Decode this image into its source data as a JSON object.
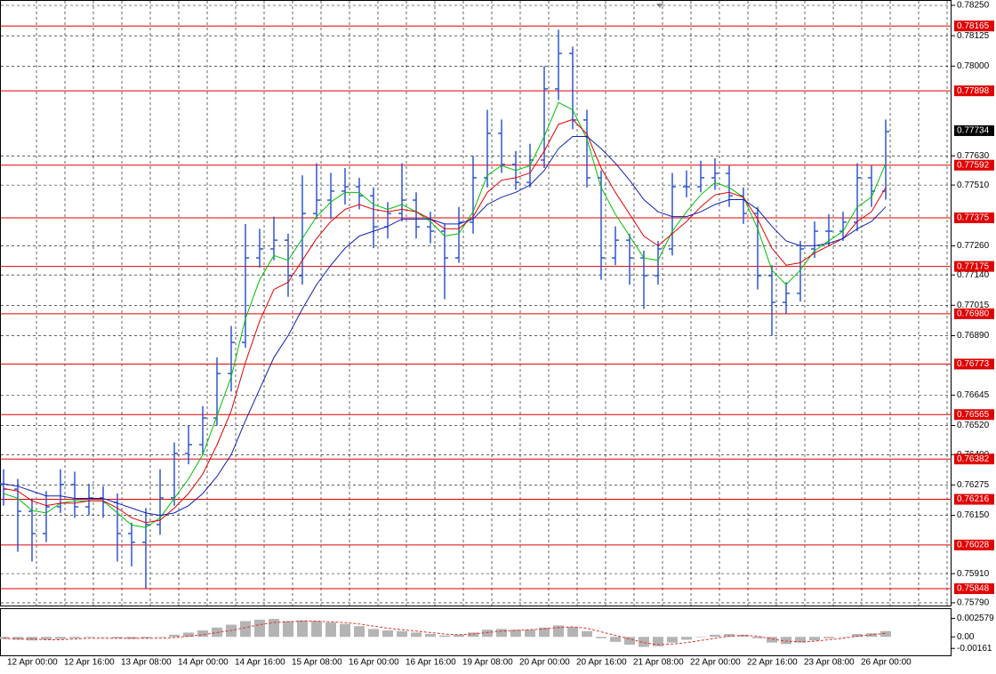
{
  "chart_data": {
    "type": "candlestick",
    "color": "#2f55d4",
    "grid": true,
    "ylim": [
      0.75775,
      0.78272
    ],
    "yticks": [
      {
        "value": 0.7825,
        "label": "0.78250"
      },
      0.78125,
      {
        "value": 0.78,
        "label": "0.78000"
      },
      {
        "value": 0.7763,
        "label": "0.77630"
      },
      {
        "value": 0.7751,
        "label": "0.77510"
      },
      {
        "value": 0.7726,
        "label": "0.77260"
      },
      {
        "value": 0.7714,
        "label": "0.77140"
      },
      0.77015,
      {
        "value": 0.7689,
        "label": "0.76890"
      },
      0.76645,
      {
        "value": 0.7652,
        "label": "0.76520"
      },
      {
        "value": 0.764,
        "label": "0.76400"
      },
      0.76275,
      {
        "value": 0.7615,
        "label": "0.76150"
      },
      {
        "value": 0.7591,
        "label": "0.75910"
      },
      {
        "value": 0.7579,
        "label": "0.75790"
      }
    ],
    "levels": {
      "color": "#e00000",
      "values": [
        0.78165,
        0.77898,
        0.77592,
        0.77375,
        0.77175,
        {
          "value": 0.7698,
          "label": "0.76980"
        },
        0.76773,
        0.76565,
        0.76382,
        0.76216,
        0.76028,
        0.75848
      ]
    },
    "current_price": 0.77734,
    "x_labels": [
      "12 Apr 00:00",
      "12 Apr 16:00",
      "13 Apr 08:00",
      "14 Apr 00:00",
      "14 Apr 16:00",
      "15 Apr 08:00",
      "16 Apr 00:00",
      "16 Apr 16:00",
      "19 Apr 08:00",
      "20 Apr 00:00",
      "20 Apr 16:00",
      "21 Apr 08:00",
      "22 Apr 00:00",
      "22 Apr 16:00",
      "23 Apr 08:00",
      "26 Apr 00:00"
    ],
    "ohlc": [
      [
        0.7628,
        0.7634,
        0.7619,
        0.76258
      ],
      [
        0.76258,
        0.763,
        0.76,
        0.76167
      ],
      [
        0.76167,
        0.7622,
        0.7596,
        0.76075
      ],
      [
        0.76075,
        0.7625,
        0.7604,
        0.76185
      ],
      [
        0.76185,
        0.7634,
        0.7616,
        0.76277
      ],
      [
        0.76277,
        0.7633,
        0.7614,
        0.76185
      ],
      [
        0.76185,
        0.7628,
        0.7615,
        0.76222
      ],
      [
        0.76222,
        0.7627,
        0.7614,
        0.76203
      ],
      [
        0.76203,
        0.7624,
        0.7596,
        0.76075
      ],
      [
        0.76075,
        0.7612,
        0.7594,
        0.76039
      ],
      [
        0.76039,
        0.7618,
        0.7585,
        0.76112
      ],
      [
        0.76112,
        0.7634,
        0.7607,
        0.76222
      ],
      [
        0.76222,
        0.7645,
        0.7619,
        0.76405
      ],
      [
        0.76405,
        0.7652,
        0.7636,
        0.76441
      ],
      [
        0.76441,
        0.766,
        0.764,
        0.76551
      ],
      [
        0.76551,
        0.768,
        0.7652,
        0.76734
      ],
      [
        0.76734,
        0.7693,
        0.7666,
        0.76862
      ],
      [
        0.76862,
        0.7735,
        0.7684,
        0.7721
      ],
      [
        0.7721,
        0.7733,
        0.7717,
        0.77247
      ],
      [
        0.77247,
        0.7738,
        0.772,
        0.77283
      ],
      [
        0.77283,
        0.7731,
        0.7705,
        0.77137
      ],
      [
        0.77137,
        0.7755,
        0.771,
        0.77393
      ],
      [
        0.77393,
        0.776,
        0.7737,
        0.77448
      ],
      [
        0.77448,
        0.7756,
        0.7737,
        0.77485
      ],
      [
        0.77485,
        0.7758,
        0.7743,
        0.77503
      ],
      [
        0.77503,
        0.7754,
        0.7741,
        0.77466
      ],
      [
        0.77466,
        0.775,
        0.7725,
        0.77338
      ],
      [
        0.77338,
        0.7744,
        0.7729,
        0.77393
      ],
      [
        0.77393,
        0.776,
        0.7736,
        0.77448
      ],
      [
        0.77448,
        0.7748,
        0.7729,
        0.77338
      ],
      [
        0.77338,
        0.774,
        0.7727,
        0.7732
      ],
      [
        0.7732,
        0.7735,
        0.7704,
        0.7721
      ],
      [
        0.7721,
        0.7742,
        0.7719,
        0.77357
      ],
      [
        0.77357,
        0.7763,
        0.7731,
        0.7754
      ],
      [
        0.7754,
        0.7782,
        0.775,
        0.77723
      ],
      [
        0.77723,
        0.7778,
        0.7756,
        0.77595
      ],
      [
        0.77595,
        0.7765,
        0.7749,
        0.77521
      ],
      [
        0.77521,
        0.7768,
        0.775,
        0.77613
      ],
      [
        0.77613,
        0.78,
        0.7758,
        0.77906
      ],
      [
        0.77906,
        0.7815,
        0.7786,
        0.78052
      ],
      [
        0.78052,
        0.7808,
        0.7774,
        0.77778
      ],
      [
        0.77778,
        0.7782,
        0.775,
        0.7754
      ],
      [
        0.7754,
        0.7757,
        0.7712,
        0.7721
      ],
      [
        0.7721,
        0.7734,
        0.7718,
        0.77283
      ],
      [
        0.77283,
        0.7731,
        0.771,
        0.7721
      ],
      [
        0.7721,
        0.7724,
        0.77,
        0.77137
      ],
      [
        0.77137,
        0.7728,
        0.771,
        0.77247
      ],
      [
        0.77247,
        0.7756,
        0.7722,
        0.77503
      ],
      [
        0.77503,
        0.7757,
        0.7746,
        0.77503
      ],
      [
        0.77503,
        0.7761,
        0.7748,
        0.7754
      ],
      [
        0.7754,
        0.7762,
        0.7749,
        0.77558
      ],
      [
        0.77558,
        0.7759,
        0.7742,
        0.77466
      ],
      [
        0.77466,
        0.775,
        0.7735,
        0.77393
      ],
      [
        0.77393,
        0.7742,
        0.7708,
        0.77137
      ],
      [
        0.77137,
        0.7718,
        0.7689,
        0.77027
      ],
      [
        0.77027,
        0.7711,
        0.7698,
        0.77064
      ],
      [
        0.77064,
        0.7728,
        0.7703,
        0.77247
      ],
      [
        0.77247,
        0.7736,
        0.7721,
        0.7732
      ],
      [
        0.7732,
        0.7739,
        0.7726,
        0.7732
      ],
      [
        0.7732,
        0.774,
        0.7728,
        0.77357
      ],
      [
        0.77357,
        0.776,
        0.7732,
        0.7754
      ],
      [
        0.7754,
        0.7759,
        0.7742,
        0.77485
      ],
      [
        0.77485,
        0.7778,
        0.7745,
        0.7773
      ]
    ],
    "moving_averages": [
      {
        "color": "#00c000",
        "values": [
          0.7624,
          0.7622,
          0.7617,
          0.7616,
          0.762,
          0.7621,
          0.7621,
          0.7621,
          0.7616,
          0.7611,
          0.761,
          0.7614,
          0.7622,
          0.763,
          0.764,
          0.7656,
          0.7672,
          0.7696,
          0.7712,
          0.7722,
          0.772,
          0.7729,
          0.7738,
          0.7744,
          0.7748,
          0.7748,
          0.7743,
          0.7741,
          0.7743,
          0.774,
          0.7736,
          0.773,
          0.7731,
          0.774,
          0.7755,
          0.7759,
          0.7757,
          0.7759,
          0.7771,
          0.7785,
          0.7782,
          0.777,
          0.775,
          0.7739,
          0.773,
          0.7721,
          0.772,
          0.7732,
          0.774,
          0.7747,
          0.7752,
          0.775,
          0.7746,
          0.7733,
          0.7716,
          0.771,
          0.7716,
          0.7724,
          0.7728,
          0.7732,
          0.7742,
          0.7746,
          0.776
        ]
      },
      {
        "color": "#e00000",
        "values": [
          0.7626,
          0.7625,
          0.7621,
          0.7619,
          0.762,
          0.762,
          0.7621,
          0.7621,
          0.7618,
          0.7614,
          0.7612,
          0.7613,
          0.7618,
          0.7624,
          0.7632,
          0.7644,
          0.7658,
          0.7678,
          0.7695,
          0.7708,
          0.7711,
          0.772,
          0.7729,
          0.7736,
          0.7741,
          0.7743,
          0.7741,
          0.774,
          0.7741,
          0.774,
          0.7737,
          0.7733,
          0.7733,
          0.7738,
          0.7748,
          0.7753,
          0.7754,
          0.7756,
          0.7765,
          0.7776,
          0.7778,
          0.7772,
          0.7758,
          0.7748,
          0.7739,
          0.773,
          0.7726,
          0.7731,
          0.7736,
          0.7742,
          0.7747,
          0.7748,
          0.7746,
          0.7737,
          0.7725,
          0.7718,
          0.7719,
          0.7723,
          0.7726,
          0.7729,
          0.7736,
          0.774,
          0.775
        ]
      },
      {
        "color": "#1020b0",
        "values": [
          0.7628,
          0.7627,
          0.7625,
          0.7623,
          0.7623,
          0.7622,
          0.7622,
          0.7622,
          0.762,
          0.7618,
          0.7616,
          0.7615,
          0.7616,
          0.7619,
          0.7624,
          0.7631,
          0.764,
          0.7654,
          0.7667,
          0.768,
          0.7689,
          0.77,
          0.771,
          0.7718,
          0.7725,
          0.773,
          0.7732,
          0.7734,
          0.7737,
          0.7737,
          0.7737,
          0.7735,
          0.7735,
          0.7737,
          0.7743,
          0.7746,
          0.7748,
          0.7751,
          0.7757,
          0.7766,
          0.7771,
          0.7771,
          0.7766,
          0.776,
          0.7753,
          0.7745,
          0.774,
          0.7738,
          0.7738,
          0.774,
          0.7743,
          0.7745,
          0.7745,
          0.7741,
          0.7734,
          0.7728,
          0.7726,
          0.7726,
          0.7727,
          0.7729,
          0.7733,
          0.7736,
          0.7742
        ]
      }
    ],
    "osc": {
      "ylim": [
        -0.0027,
        0.004
      ],
      "yticks": [
        0.002579,
        {
          "value": 0,
          "label": "0.00"
        },
        -0.00161
      ],
      "histogram": {
        "color": "#b4b4b4",
        "values": [
          -0.0003,
          -0.0004,
          -0.0005,
          -0.0004,
          -0.0003,
          -0.0002,
          -0.0001,
          0,
          -0.0002,
          -0.0003,
          -0.0002,
          0,
          0.0003,
          0.0006,
          0.0009,
          0.0013,
          0.0017,
          0.0022,
          0.0024,
          0.0025,
          0.0022,
          0.0023,
          0.0022,
          0.002,
          0.0018,
          0.0015,
          0.0011,
          0.0009,
          0.0008,
          0.0006,
          0.0004,
          0.0002,
          0.0003,
          0.0006,
          0.001,
          0.0011,
          0.001,
          0.001,
          0.0013,
          0.0016,
          0.0014,
          0.0008,
          -0.0002,
          -0.0007,
          -0.0011,
          -0.0014,
          -0.0013,
          -0.0008,
          -0.0004,
          0,
          0.0003,
          0.0004,
          0.0003,
          -0.0002,
          -0.0008,
          -0.001,
          -0.0008,
          -0.0005,
          -0.0002,
          0,
          0.0004,
          0.0005,
          0.0008
        ]
      },
      "signal": {
        "color": "#e03030",
        "values": [
          -0.0002,
          -0.0003,
          -0.0003,
          -0.0004,
          -0.0004,
          -0.0003,
          -0.0002,
          -0.0002,
          -0.0002,
          -0.0002,
          -0.0002,
          -0.0002,
          -0.0001,
          0.0001,
          0.0003,
          0.0006,
          0.0009,
          0.0013,
          0.0017,
          0.002,
          0.0021,
          0.0022,
          0.0022,
          0.0021,
          0.002,
          0.0018,
          0.0015,
          0.0012,
          0.001,
          0.0008,
          0.0006,
          0.0004,
          0.0003,
          0.0004,
          0.0006,
          0.0008,
          0.0009,
          0.001,
          0.0011,
          0.0013,
          0.0014,
          0.0012,
          0.0007,
          0.0002,
          -0.0003,
          -0.0008,
          -0.0011,
          -0.001,
          -0.0008,
          -0.0005,
          -0.0002,
          0.0001,
          0.0002,
          0.0001,
          -0.0003,
          -0.0006,
          -0.0007,
          -0.0006,
          -0.0004,
          -0.0002,
          0.0001,
          0.0003,
          0.0005
        ]
      }
    }
  }
}
